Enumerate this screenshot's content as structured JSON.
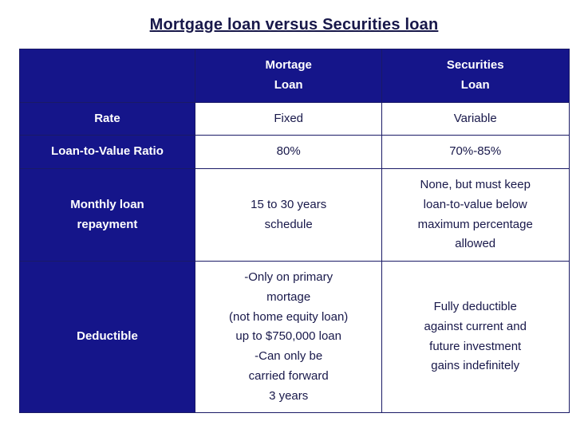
{
  "title": "Mortgage loan versus Securities loan",
  "colors": {
    "header_bg": "#15158a",
    "header_text": "#ffffff",
    "cell_bg": "#ffffff",
    "cell_text": "#18184a",
    "border": "#1a1a66",
    "title_text": "#18184a"
  },
  "columns": [
    {
      "line1": "Mortage",
      "line2": "Loan"
    },
    {
      "line1": "Securities",
      "line2": "Loan"
    }
  ],
  "rows": [
    {
      "label": "Rate",
      "col1": "Fixed",
      "col2": "Variable"
    },
    {
      "label": "Loan-to-Value Ratio",
      "col1": "80%",
      "col2": "70%-85%"
    },
    {
      "label_line1": "Monthly loan",
      "label_line2": "repayment",
      "col1_line1": "15 to 30 years",
      "col1_line2": "schedule",
      "col2_line1": "None, but must keep",
      "col2_line2": "loan-to-value below",
      "col2_line3": "maximum percentage",
      "col2_line4": "allowed"
    },
    {
      "label": "Deductible",
      "col1_line1": "-Only on primary",
      "col1_line2": "mortage",
      "col1_line3": "(not home equity loan)",
      "col1_line4": "up to $750,000 loan",
      "col1_line5": "-Can only be",
      "col1_line6": "carried forward",
      "col1_line7": "3 years",
      "col2_line1": "Fully deductible",
      "col2_line2": "against current and",
      "col2_line3": "future investment",
      "col2_line4": "gains indefinitely"
    }
  ]
}
